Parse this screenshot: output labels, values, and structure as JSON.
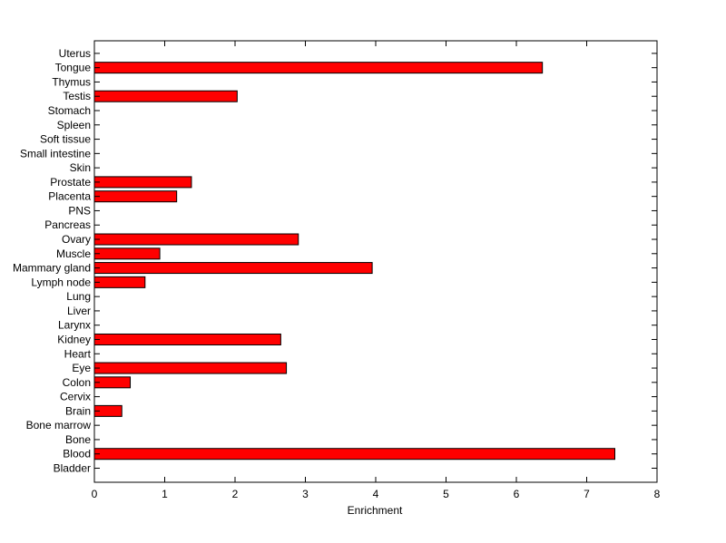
{
  "chart_data": {
    "type": "bar",
    "orientation": "horizontal",
    "title": "",
    "xlabel": "Enrichment",
    "ylabel": "",
    "xlim": [
      0,
      8
    ],
    "x_ticks": [
      "0",
      "1",
      "2",
      "3",
      "4",
      "5",
      "6",
      "7",
      "8"
    ],
    "grid": false,
    "legend": "none",
    "bar_color": "#ff0000",
    "bar_edge_color": "#000000",
    "categories": [
      "Bladder",
      "Blood",
      "Bone",
      "Bone marrow",
      "Brain",
      "Cervix",
      "Colon",
      "Eye",
      "Heart",
      "Kidney",
      "Larynx",
      "Liver",
      "Lung",
      "Lymph node",
      "Mammary gland",
      "Muscle",
      "Ovary",
      "Pancreas",
      "PNS",
      "Placenta",
      "Prostate",
      "Skin",
      "Small intestine",
      "Soft tissue",
      "Spleen",
      "Stomach",
      "Testis",
      "Thymus",
      "Tongue",
      "Uterus"
    ],
    "values": [
      0,
      7.4,
      0,
      0,
      0.39,
      0,
      0.51,
      2.73,
      0,
      2.65,
      0,
      0,
      0,
      0.72,
      3.95,
      0.93,
      2.9,
      0,
      0,
      1.17,
      1.38,
      0,
      0,
      0,
      0,
      0,
      2.03,
      0,
      6.37,
      0
    ]
  }
}
